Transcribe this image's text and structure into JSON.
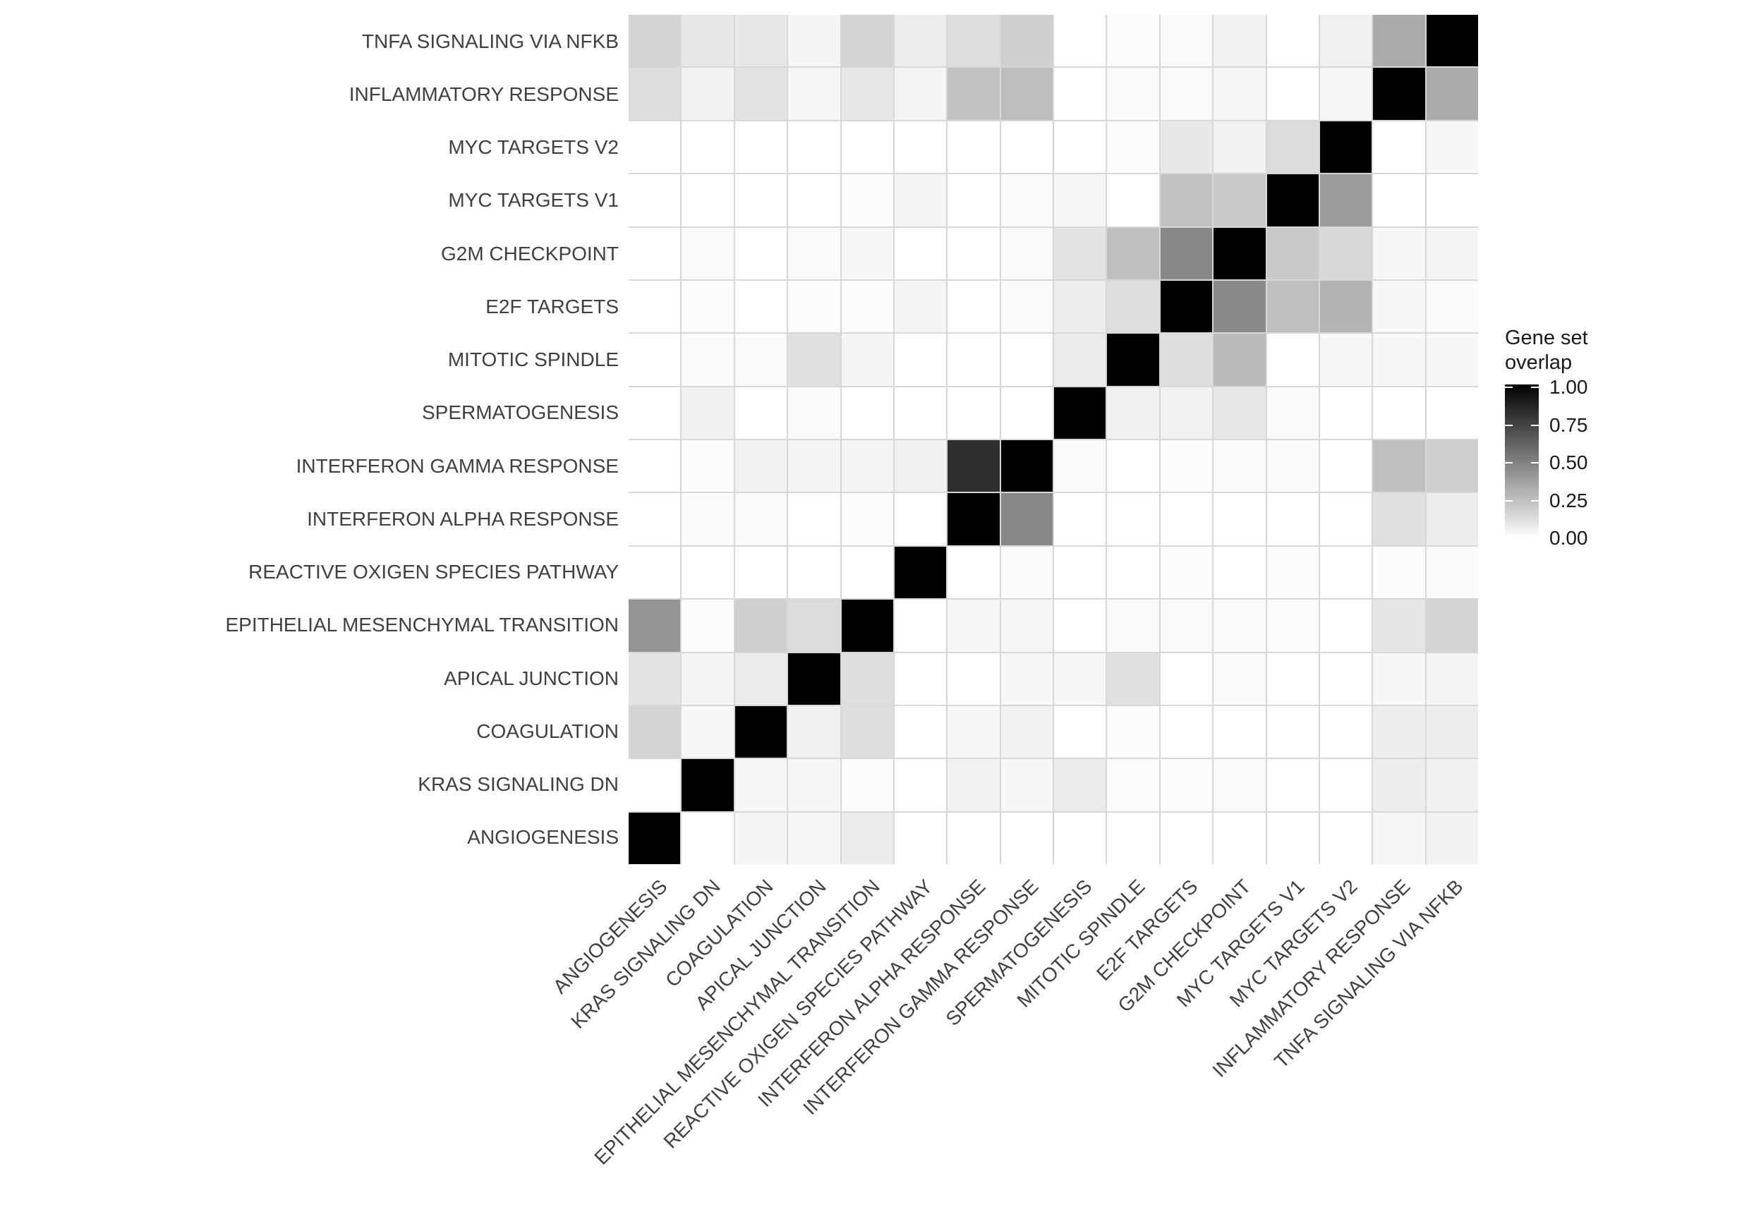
{
  "figure": {
    "background": "#ffffff",
    "gridline_color": "#d7d7d7",
    "axis_text_color": "#404040",
    "legend_text_color": "#1a1a1a"
  },
  "legend": {
    "title": "Gene set\noverlap",
    "ticks": [
      "1.00",
      "0.75",
      "0.50",
      "0.25",
      "0.00"
    ],
    "tick_values": [
      1.0,
      0.75,
      0.5,
      0.25,
      0.0
    ],
    "gradient_top": "#000000",
    "gradient_bottom": "#ffffff"
  },
  "chart_data": {
    "type": "heatmap",
    "title": "",
    "xlabel": "",
    "ylabel": "",
    "legend_title": "Gene set overlap",
    "value_range": [
      0.0,
      1.0
    ],
    "color_scale": "white (0.00) to black (1.00), linear",
    "columns_left_to_right": [
      "ANGIOGENESIS",
      "KRAS SIGNALING DN",
      "COAGULATION",
      "APICAL JUNCTION",
      "EPITHELIAL MESENCHYMAL TRANSITION",
      "REACTIVE OXIGEN SPECIES PATHWAY",
      "INTERFERON ALPHA RESPONSE",
      "INTERFERON GAMMA RESPONSE",
      "SPERMATOGENESIS",
      "MITOTIC SPINDLE",
      "E2F TARGETS",
      "G2M CHECKPOINT",
      "MYC TARGETS V1",
      "MYC TARGETS V2",
      "INFLAMMATORY RESPONSE",
      "TNFA SIGNALING VIA NFKB"
    ],
    "rows_top_to_bottom": [
      "TNFA SIGNALING VIA NFKB",
      "INFLAMMATORY RESPONSE",
      "MYC TARGETS V2",
      "MYC TARGETS V1",
      "G2M CHECKPOINT",
      "E2F TARGETS",
      "MITOTIC SPINDLE",
      "SPERMATOGENESIS",
      "INTERFERON GAMMA RESPONSE",
      "INTERFERON ALPHA RESPONSE",
      "REACTIVE OXIGEN SPECIES PATHWAY",
      "EPITHELIAL MESENCHYMAL TRANSITION",
      "APICAL JUNCTION",
      "COAGULATION",
      "KRAS SIGNALING DN",
      "ANGIOGENESIS"
    ],
    "matrix": [
      [
        0.17,
        0.09,
        0.09,
        0.04,
        0.17,
        0.07,
        0.13,
        0.19,
        0.0,
        0.01,
        0.02,
        0.05,
        0.0,
        0.06,
        0.33,
        1.0
      ],
      [
        0.13,
        0.05,
        0.11,
        0.03,
        0.09,
        0.04,
        0.24,
        0.26,
        0.0,
        0.02,
        0.02,
        0.03,
        0.0,
        0.03,
        1.0,
        0.33
      ],
      [
        0.0,
        0.0,
        0.0,
        0.0,
        0.0,
        0.0,
        0.0,
        0.0,
        0.0,
        0.01,
        0.09,
        0.05,
        0.14,
        1.0,
        0.0,
        0.03
      ],
      [
        0.0,
        0.0,
        0.0,
        0.0,
        0.01,
        0.04,
        0.0,
        0.02,
        0.03,
        0.0,
        0.24,
        0.21,
        1.0,
        0.39,
        0.0,
        0.0
      ],
      [
        0.0,
        0.02,
        0.0,
        0.02,
        0.03,
        0.0,
        0.0,
        0.02,
        0.11,
        0.25,
        0.47,
        1.0,
        0.21,
        0.15,
        0.03,
        0.04
      ],
      [
        0.0,
        0.01,
        0.0,
        0.01,
        0.01,
        0.04,
        0.0,
        0.02,
        0.07,
        0.13,
        1.0,
        0.46,
        0.25,
        0.3,
        0.03,
        0.02
      ],
      [
        0.0,
        0.02,
        0.02,
        0.12,
        0.04,
        0.0,
        0.0,
        0.0,
        0.08,
        1.0,
        0.13,
        0.27,
        0.0,
        0.03,
        0.03,
        0.03
      ],
      [
        0.0,
        0.06,
        0.0,
        0.02,
        0.0,
        0.0,
        0.0,
        0.0,
        1.0,
        0.06,
        0.05,
        0.09,
        0.02,
        0.0,
        0.0,
        0.0
      ],
      [
        0.0,
        0.01,
        0.05,
        0.04,
        0.04,
        0.06,
        0.82,
        1.0,
        0.02,
        0.0,
        0.01,
        0.02,
        0.02,
        0.0,
        0.25,
        0.19
      ],
      [
        0.0,
        0.02,
        0.02,
        0.0,
        0.01,
        0.0,
        1.0,
        0.47,
        0.0,
        0.0,
        0.0,
        0.0,
        0.0,
        0.0,
        0.12,
        0.07
      ],
      [
        0.0,
        0.0,
        0.0,
        0.0,
        0.0,
        1.0,
        0.0,
        0.02,
        0.0,
        0.0,
        0.01,
        0.0,
        0.01,
        0.0,
        0.01,
        0.02
      ],
      [
        0.42,
        0.01,
        0.19,
        0.14,
        1.0,
        0.0,
        0.03,
        0.03,
        0.0,
        0.02,
        0.02,
        0.02,
        0.01,
        0.0,
        0.1,
        0.17
      ],
      [
        0.11,
        0.04,
        0.08,
        1.0,
        0.13,
        0.0,
        0.0,
        0.03,
        0.03,
        0.12,
        0.0,
        0.02,
        0.0,
        0.0,
        0.03,
        0.04
      ],
      [
        0.17,
        0.03,
        1.0,
        0.06,
        0.13,
        0.0,
        0.03,
        0.05,
        0.0,
        0.01,
        0.0,
        0.0,
        0.0,
        0.0,
        0.07,
        0.07
      ],
      [
        0.0,
        1.0,
        0.03,
        0.03,
        0.01,
        0.0,
        0.05,
        0.03,
        0.08,
        0.01,
        0.01,
        0.02,
        0.0,
        0.0,
        0.07,
        0.06
      ],
      [
        1.0,
        0.0,
        0.04,
        0.03,
        0.08,
        0.0,
        0.0,
        0.0,
        0.0,
        0.0,
        0.0,
        0.0,
        0.0,
        0.0,
        0.03,
        0.05
      ]
    ],
    "grid": true,
    "legend_position": "right"
  }
}
